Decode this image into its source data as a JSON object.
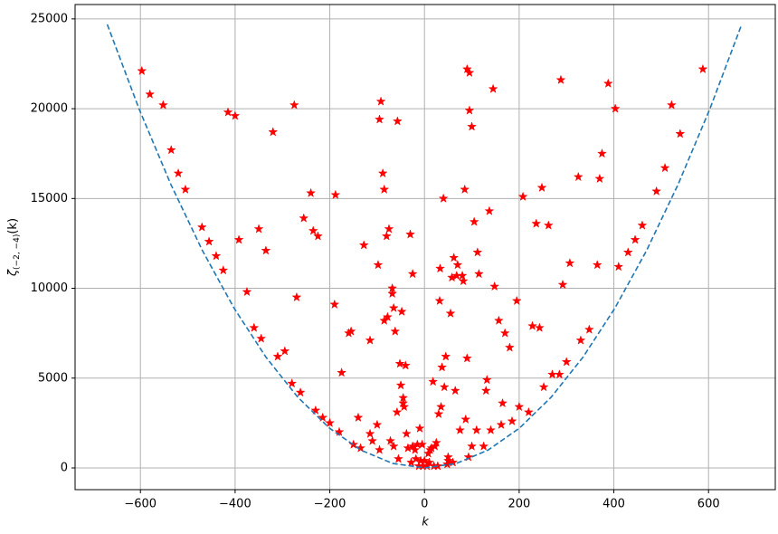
{
  "chart_data": {
    "type": "scatter",
    "xlabel": "k",
    "ylabel": {
      "symbol": "ζ",
      "subscript": "(−2, −4)",
      "argument": "(k)"
    },
    "xlim": [
      -738,
      741
    ],
    "ylim": [
      -1210,
      25800
    ],
    "xticks": [
      {
        "value": -600,
        "label": "−600"
      },
      {
        "value": -400,
        "label": "−400"
      },
      {
        "value": -200,
        "label": "−200"
      },
      0,
      200,
      400,
      600
    ],
    "yticks": [
      0,
      5000,
      10000,
      15000,
      20000,
      25000
    ],
    "grid": true,
    "series": [
      {
        "color": "#ff0000",
        "marker": "*",
        "x": [
          -597,
          -580,
          -552,
          -535,
          -520,
          -505,
          -470,
          -455,
          -440,
          -425,
          -415,
          -400,
          -392,
          -375,
          -360,
          -350,
          -345,
          -335,
          -320,
          -310,
          -295,
          -280,
          -275,
          -270,
          -262,
          -255,
          -240,
          -235,
          -230,
          -225,
          -215,
          -200,
          -190,
          -188,
          -180,
          -175,
          -160,
          -155,
          -150,
          -140,
          -135,
          -128,
          -115,
          -115,
          -110,
          -100,
          -98,
          -95,
          -95,
          -92,
          -88,
          -85,
          -85,
          -80,
          -78,
          -75,
          -72,
          -68,
          -68,
          -65,
          -65,
          -62,
          -58,
          -57,
          -55,
          -52,
          -50,
          -48,
          -45,
          -45,
          -43,
          -40,
          -38,
          -35,
          -30,
          -28,
          -25,
          -25,
          -20,
          -18,
          -15,
          -12,
          -10,
          -8,
          -5,
          -3,
          0,
          5,
          8,
          10,
          12,
          15,
          18,
          20,
          22,
          25,
          28,
          30,
          32,
          33,
          35,
          37,
          40,
          42,
          45,
          48,
          50,
          50,
          55,
          58,
          60,
          62,
          65,
          68,
          70,
          75,
          80,
          82,
          85,
          87,
          90,
          90,
          93,
          95,
          95,
          100,
          100,
          105,
          110,
          112,
          115,
          125,
          130,
          132,
          137,
          140,
          145,
          148,
          157,
          162,
          165,
          170,
          180,
          185,
          195,
          200,
          208,
          220,
          228,
          236,
          243,
          248,
          252,
          262,
          270,
          285,
          288,
          292,
          300,
          307,
          330,
          325,
          348,
          365,
          370,
          375,
          388,
          403,
          410,
          430,
          445,
          460,
          490,
          508,
          522,
          540,
          588
        ],
        "values": [
          22100,
          20800,
          20200,
          17700,
          16400,
          15500,
          13400,
          12600,
          11800,
          11000,
          19800,
          19600,
          12700,
          9800,
          7800,
          13300,
          7200,
          12100,
          18700,
          6200,
          6500,
          4700,
          20200,
          9500,
          4200,
          13900,
          15300,
          13200,
          3200,
          12900,
          2800,
          2500,
          9100,
          15200,
          2000,
          5300,
          7500,
          7600,
          1300,
          2800,
          1100,
          12400,
          7100,
          1900,
          1500,
          2400,
          11300,
          1000,
          19400,
          20400,
          16400,
          8200,
          15500,
          12900,
          8400,
          13300,
          1500,
          9700,
          10000,
          1200,
          8900,
          7600,
          3100,
          19300,
          500,
          5800,
          4600,
          8700,
          3600,
          3900,
          3400,
          5700,
          1900,
          1100,
          13000,
          300,
          10800,
          1200,
          1000,
          500,
          1300,
          100,
          2200,
          400,
          1300,
          100,
          400,
          100,
          800,
          300,
          1000,
          1100,
          4800,
          100,
          1200,
          1400,
          100,
          3000,
          9300,
          11100,
          3400,
          5600,
          15000,
          4500,
          6200,
          200,
          400,
          600,
          8600,
          10600,
          300,
          11700,
          4300,
          10700,
          11300,
          2100,
          10700,
          10400,
          15500,
          2700,
          6100,
          22200,
          600,
          19900,
          22000,
          19000,
          1200,
          13700,
          2100,
          12000,
          10800,
          1200,
          4300,
          4900,
          14300,
          2100,
          21100,
          10100,
          8200,
          2400,
          3600,
          7500,
          6700,
          2600,
          9300,
          3400,
          15100,
          3100,
          7900,
          13600,
          7800,
          15600,
          4500,
          13500,
          5200,
          5200,
          21600,
          10200,
          5900,
          11400,
          7100,
          16200,
          7700,
          11300,
          16100,
          17500,
          21400,
          20000,
          11200,
          12000,
          12700,
          13500,
          15400,
          16700,
          20200,
          18600,
          22200
        ]
      },
      {
        "color": "#1f77b4",
        "linestyle": "--",
        "x": [
          -670,
          -603,
          -536,
          -469,
          -402,
          -335,
          -268,
          -201,
          -134,
          -67,
          0,
          67,
          134,
          201,
          268,
          335,
          402,
          469,
          536,
          603,
          670
        ],
        "values": [
          24690,
          19998,
          15801,
          12098,
          8888,
          6172,
          3950,
          2222,
          988,
          247,
          0,
          247,
          988,
          2222,
          3950,
          6172,
          8888,
          12098,
          15801,
          19998,
          24690
        ]
      }
    ]
  }
}
